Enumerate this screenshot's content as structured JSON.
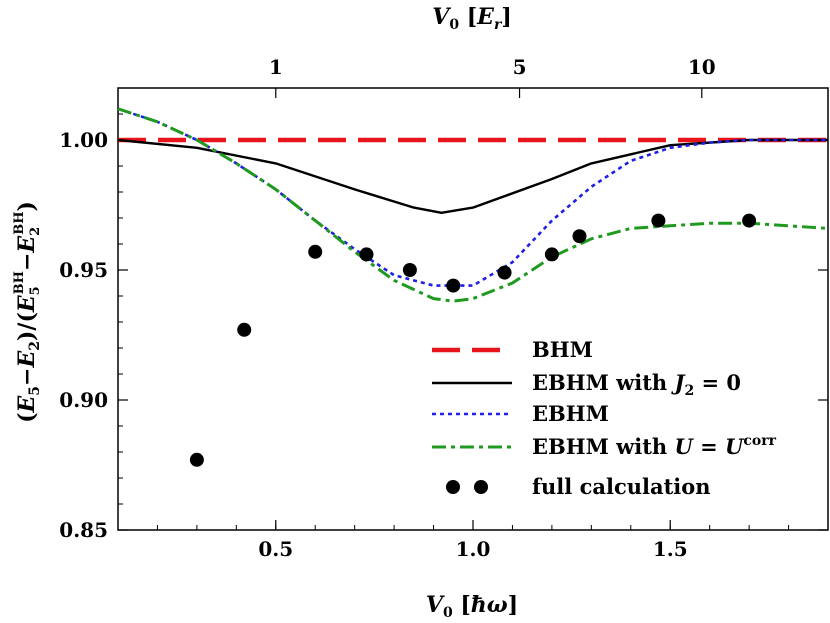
{
  "chart_data": {
    "type": "line",
    "xlabel": "V0 [ħω]",
    "x2label": "V0 [Er]",
    "ylabel": "(E5−E2)/(E5BH−E2BH)",
    "xlim": [
      0.1,
      1.9
    ],
    "ylim": [
      0.85,
      1.02
    ],
    "x_ticks": [
      0.5,
      1.0,
      1.5
    ],
    "x_tick_labels": [
      "0.5",
      "1.0",
      "1.5"
    ],
    "y_ticks": [
      0.85,
      0.9,
      0.95,
      1.0
    ],
    "y_tick_labels": [
      "0.85",
      "0.90",
      "0.95",
      "1.00"
    ],
    "top_ticks": [
      {
        "label": "1",
        "x": 0.5
      },
      {
        "label": "5",
        "x": 1.118
      },
      {
        "label": "10",
        "x": 1.58
      }
    ],
    "grid": false,
    "legend_position": "lower-right",
    "series": [
      {
        "name": "BHM",
        "style": "dashed",
        "color": "#e8141b",
        "x": [
          0.1,
          1.9
        ],
        "y": [
          1.0,
          1.0
        ]
      },
      {
        "name": "EBHM with J2 = 0",
        "style": "solid",
        "color": "#000000",
        "x": [
          0.1,
          0.3,
          0.5,
          0.7,
          0.85,
          0.92,
          1.0,
          1.2,
          1.3,
          1.5,
          1.7,
          1.9
        ],
        "y": [
          1.0,
          0.997,
          0.991,
          0.981,
          0.974,
          0.972,
          0.974,
          0.985,
          0.991,
          0.998,
          1.0,
          1.0
        ]
      },
      {
        "name": "EBHM",
        "style": "dotted",
        "color": "#1f1fe8",
        "x": [
          0.1,
          0.2,
          0.3,
          0.4,
          0.5,
          0.6,
          0.7,
          0.8,
          0.9,
          1.0,
          1.1,
          1.2,
          1.3,
          1.4,
          1.5,
          1.6,
          1.7,
          1.9
        ],
        "y": [
          1.012,
          1.007,
          1.0,
          0.991,
          0.981,
          0.969,
          0.958,
          0.948,
          0.944,
          0.944,
          0.953,
          0.969,
          0.982,
          0.992,
          0.997,
          0.999,
          1.0,
          1.0
        ]
      },
      {
        "name": "EBHM with U = Ucorr",
        "style": "dashdot",
        "color": "#1f9a1f",
        "x": [
          0.1,
          0.2,
          0.3,
          0.4,
          0.5,
          0.6,
          0.7,
          0.8,
          0.9,
          0.95,
          1.0,
          1.1,
          1.2,
          1.3,
          1.4,
          1.5,
          1.6,
          1.7,
          1.8,
          1.9
        ],
        "y": [
          1.012,
          1.007,
          1.0,
          0.991,
          0.981,
          0.969,
          0.957,
          0.946,
          0.939,
          0.938,
          0.939,
          0.945,
          0.955,
          0.962,
          0.966,
          0.967,
          0.968,
          0.968,
          0.967,
          0.966
        ]
      },
      {
        "name": "full calculation",
        "style": "markers",
        "color": "#000000",
        "x": [
          0.3,
          0.42,
          0.6,
          0.73,
          0.84,
          0.95,
          1.08,
          1.2,
          1.27,
          1.47,
          1.7
        ],
        "y": [
          0.877,
          0.927,
          0.957,
          0.956,
          0.95,
          0.944,
          0.949,
          0.956,
          0.963,
          0.969,
          0.969
        ]
      }
    ]
  }
}
